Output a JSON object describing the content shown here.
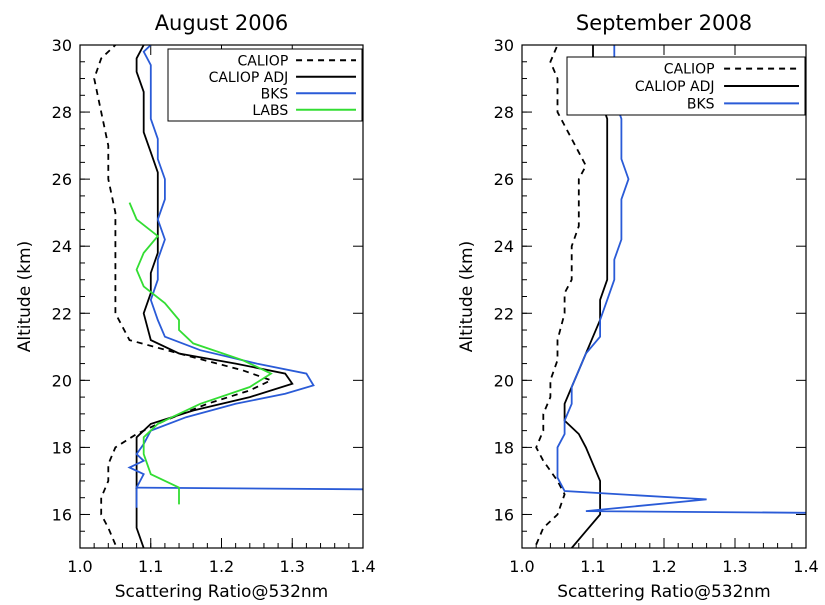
{
  "chart_data": [
    {
      "type": "line",
      "title": "August 2006",
      "xlabel": "Scattering Ratio@532nm",
      "ylabel": "Altitude (km)",
      "xlim": [
        1.0,
        1.4
      ],
      "ylim": [
        15,
        30
      ],
      "xticks": [
        "1.0",
        "1.1",
        "1.2",
        "1.3",
        "1.4"
      ],
      "yticks": [
        "16",
        "18",
        "20",
        "22",
        "24",
        "26",
        "28",
        "30"
      ],
      "grid": false,
      "legend": "top-right",
      "series": [
        {
          "name": "CALIOP",
          "color": "#000000",
          "dash": true,
          "points": [
            [
              1.05,
              15.1
            ],
            [
              1.04,
              15.6
            ],
            [
              1.03,
              16.0
            ],
            [
              1.03,
              16.5
            ],
            [
              1.04,
              17.0
            ],
            [
              1.04,
              17.5
            ],
            [
              1.05,
              18.0
            ],
            [
              1.08,
              18.4
            ],
            [
              1.12,
              18.8
            ],
            [
              1.18,
              19.3
            ],
            [
              1.24,
              19.7
            ],
            [
              1.27,
              20.0
            ],
            [
              1.23,
              20.3
            ],
            [
              1.14,
              20.8
            ],
            [
              1.07,
              21.2
            ],
            [
              1.05,
              22.0
            ],
            [
              1.05,
              23.0
            ],
            [
              1.05,
              24.0
            ],
            [
              1.05,
              25.0
            ],
            [
              1.04,
              26.0
            ],
            [
              1.04,
              27.0
            ],
            [
              1.03,
              28.0
            ],
            [
              1.02,
              29.0
            ],
            [
              1.03,
              29.6
            ],
            [
              1.05,
              30.0
            ]
          ]
        },
        {
          "name": "CALIOP ADJ",
          "color": "#000000",
          "dash": false,
          "points": [
            [
              1.09,
              15.0
            ],
            [
              1.08,
              15.6
            ],
            [
              1.08,
              16.0
            ],
            [
              1.08,
              16.6
            ],
            [
              1.08,
              17.2
            ],
            [
              1.08,
              17.8
            ],
            [
              1.08,
              18.3
            ],
            [
              1.1,
              18.7
            ],
            [
              1.16,
              19.1
            ],
            [
              1.24,
              19.5
            ],
            [
              1.3,
              19.9
            ],
            [
              1.29,
              20.2
            ],
            [
              1.22,
              20.5
            ],
            [
              1.14,
              20.8
            ],
            [
              1.1,
              21.2
            ],
            [
              1.09,
              22.0
            ],
            [
              1.1,
              22.6
            ],
            [
              1.1,
              23.2
            ],
            [
              1.11,
              23.8
            ],
            [
              1.11,
              24.4
            ],
            [
              1.11,
              25.0
            ],
            [
              1.11,
              25.6
            ],
            [
              1.11,
              26.2
            ],
            [
              1.1,
              26.8
            ],
            [
              1.09,
              27.4
            ],
            [
              1.09,
              28.0
            ],
            [
              1.09,
              28.6
            ],
            [
              1.08,
              29.2
            ],
            [
              1.08,
              29.6
            ],
            [
              1.09,
              30.0
            ]
          ]
        },
        {
          "name": "BKS",
          "color": "#2a5bd7",
          "dash": false,
          "points": [
            [
              1.08,
              16.2
            ],
            [
              1.08,
              16.8
            ],
            [
              1.4,
              16.75
            ],
            [
              1.08,
              16.8
            ],
            [
              1.09,
              17.2
            ],
            [
              1.07,
              17.4
            ],
            [
              1.09,
              17.6
            ],
            [
              1.08,
              17.8
            ],
            [
              1.09,
              18.1
            ],
            [
              1.1,
              18.5
            ],
            [
              1.15,
              18.9
            ],
            [
              1.22,
              19.3
            ],
            [
              1.29,
              19.6
            ],
            [
              1.33,
              19.85
            ],
            [
              1.32,
              20.2
            ],
            [
              1.25,
              20.5
            ],
            [
              1.17,
              20.9
            ],
            [
              1.12,
              21.3
            ],
            [
              1.11,
              21.8
            ],
            [
              1.1,
              22.4
            ],
            [
              1.11,
              23.0
            ],
            [
              1.11,
              23.6
            ],
            [
              1.12,
              24.2
            ],
            [
              1.11,
              24.8
            ],
            [
              1.12,
              25.4
            ],
            [
              1.12,
              26.0
            ],
            [
              1.11,
              26.6
            ],
            [
              1.11,
              27.2
            ],
            [
              1.1,
              27.8
            ],
            [
              1.1,
              28.4
            ],
            [
              1.1,
              29.0
            ],
            [
              1.1,
              29.4
            ],
            [
              1.09,
              29.8
            ],
            [
              1.1,
              30.0
            ]
          ]
        },
        {
          "name": "LABS",
          "color": "#33dd33",
          "dash": false,
          "points": [
            [
              1.14,
              16.3
            ],
            [
              1.14,
              16.8
            ],
            [
              1.1,
              17.2
            ],
            [
              1.09,
              17.8
            ],
            [
              1.09,
              18.3
            ],
            [
              1.11,
              18.7
            ],
            [
              1.17,
              19.3
            ],
            [
              1.24,
              19.8
            ],
            [
              1.27,
              20.2
            ],
            [
              1.23,
              20.6
            ],
            [
              1.16,
              21.1
            ],
            [
              1.14,
              21.5
            ],
            [
              1.14,
              21.8
            ],
            [
              1.12,
              22.3
            ],
            [
              1.09,
              22.8
            ],
            [
              1.08,
              23.3
            ],
            [
              1.09,
              23.8
            ],
            [
              1.11,
              24.3
            ],
            [
              1.08,
              24.8
            ],
            [
              1.07,
              25.3
            ]
          ]
        }
      ]
    },
    {
      "type": "line",
      "title": "September 2008",
      "xlabel": "Scattering Ratio@532nm",
      "ylabel": "Altitude (km)",
      "xlim": [
        1.0,
        1.4
      ],
      "ylim": [
        15,
        30
      ],
      "xticks": [
        "1.0",
        "1.1",
        "1.2",
        "1.3",
        "1.4"
      ],
      "yticks": [
        "16",
        "18",
        "20",
        "22",
        "24",
        "26",
        "28",
        "30"
      ],
      "grid": false,
      "legend": "top-right",
      "series": [
        {
          "name": "CALIOP",
          "color": "#000000",
          "dash": true,
          "points": [
            [
              1.02,
              15.1
            ],
            [
              1.03,
              15.6
            ],
            [
              1.05,
              16.0
            ],
            [
              1.06,
              16.6
            ],
            [
              1.05,
              17.0
            ],
            [
              1.03,
              17.6
            ],
            [
              1.02,
              18.0
            ],
            [
              1.03,
              18.5
            ],
            [
              1.03,
              19.0
            ],
            [
              1.04,
              19.5
            ],
            [
              1.04,
              20.0
            ],
            [
              1.05,
              20.6
            ],
            [
              1.05,
              21.2
            ],
            [
              1.06,
              22.0
            ],
            [
              1.06,
              22.6
            ],
            [
              1.07,
              23.0
            ],
            [
              1.07,
              23.6
            ],
            [
              1.07,
              24.0
            ],
            [
              1.08,
              24.6
            ],
            [
              1.08,
              25.0
            ],
            [
              1.08,
              25.6
            ],
            [
              1.08,
              26.0
            ],
            [
              1.09,
              26.4
            ],
            [
              1.08,
              26.8
            ],
            [
              1.07,
              27.2
            ],
            [
              1.06,
              27.6
            ],
            [
              1.05,
              28.0
            ],
            [
              1.05,
              28.5
            ],
            [
              1.05,
              29.0
            ],
            [
              1.04,
              29.5
            ],
            [
              1.05,
              30.0
            ]
          ]
        },
        {
          "name": "CALIOP ADJ",
          "color": "#000000",
          "dash": false,
          "points": [
            [
              1.07,
              15.0
            ],
            [
              1.09,
              15.5
            ],
            [
              1.11,
              16.0
            ],
            [
              1.11,
              16.5
            ],
            [
              1.11,
              17.0
            ],
            [
              1.1,
              17.5
            ],
            [
              1.09,
              18.0
            ],
            [
              1.08,
              18.4
            ],
            [
              1.06,
              18.8
            ],
            [
              1.06,
              19.3
            ],
            [
              1.07,
              19.8
            ],
            [
              1.08,
              20.3
            ],
            [
              1.09,
              20.8
            ],
            [
              1.1,
              21.3
            ],
            [
              1.11,
              21.8
            ],
            [
              1.11,
              22.4
            ],
            [
              1.12,
              23.0
            ],
            [
              1.12,
              23.6
            ],
            [
              1.12,
              24.2
            ],
            [
              1.12,
              24.8
            ],
            [
              1.12,
              25.4
            ],
            [
              1.12,
              26.0
            ],
            [
              1.12,
              26.6
            ],
            [
              1.12,
              27.2
            ],
            [
              1.12,
              27.8
            ],
            [
              1.11,
              28.4
            ],
            [
              1.11,
              29.0
            ],
            [
              1.1,
              29.6
            ],
            [
              1.1,
              30.0
            ]
          ]
        },
        {
          "name": "BKS",
          "color": "#2a5bd7",
          "dash": false,
          "points": [
            [
              1.4,
              16.05
            ],
            [
              1.09,
              16.1
            ],
            [
              1.26,
              16.45
            ],
            [
              1.06,
              16.7
            ],
            [
              1.05,
              17.1
            ],
            [
              1.05,
              17.5
            ],
            [
              1.05,
              18.0
            ],
            [
              1.06,
              18.4
            ],
            [
              1.06,
              18.8
            ],
            [
              1.07,
              19.3
            ],
            [
              1.07,
              19.8
            ],
            [
              1.08,
              20.3
            ],
            [
              1.09,
              20.8
            ],
            [
              1.11,
              21.3
            ],
            [
              1.11,
              21.8
            ],
            [
              1.12,
              22.4
            ],
            [
              1.13,
              23.0
            ],
            [
              1.13,
              23.6
            ],
            [
              1.14,
              24.2
            ],
            [
              1.14,
              24.8
            ],
            [
              1.14,
              25.4
            ],
            [
              1.15,
              26.0
            ],
            [
              1.14,
              26.6
            ],
            [
              1.14,
              27.2
            ],
            [
              1.14,
              27.8
            ],
            [
              1.13,
              28.4
            ],
            [
              1.12,
              29.0
            ],
            [
              1.13,
              29.6
            ],
            [
              1.13,
              30.0
            ]
          ]
        }
      ]
    }
  ]
}
